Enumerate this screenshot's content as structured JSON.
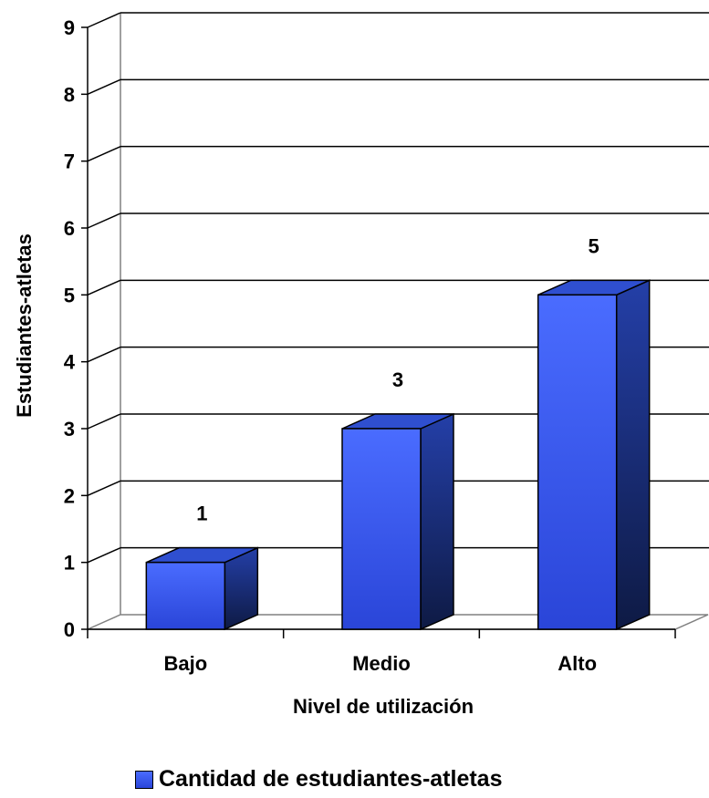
{
  "chart_data": {
    "type": "bar",
    "categories": [
      "Bajo",
      "Medio",
      "Alto"
    ],
    "series": [
      {
        "name": "Cantidad de estudiantes-atletas",
        "values": [
          1,
          3,
          5
        ]
      }
    ],
    "data_labels": [
      "1",
      "3",
      "5"
    ],
    "xlabel": "Nivel de utilización",
    "ylabel": "Estudiantes-atletas",
    "ylim": [
      0,
      9
    ],
    "yticks": [
      "0",
      "1",
      "2",
      "3",
      "4",
      "5",
      "6",
      "7",
      "8",
      "9"
    ],
    "grid": true,
    "style": "3d-column",
    "legend_position": "bottom",
    "colors": {
      "bar_front": "#3a5cf5",
      "bar_side": "#162a6e",
      "bar_top": "#2f4fd0",
      "axis": "#000000"
    }
  }
}
